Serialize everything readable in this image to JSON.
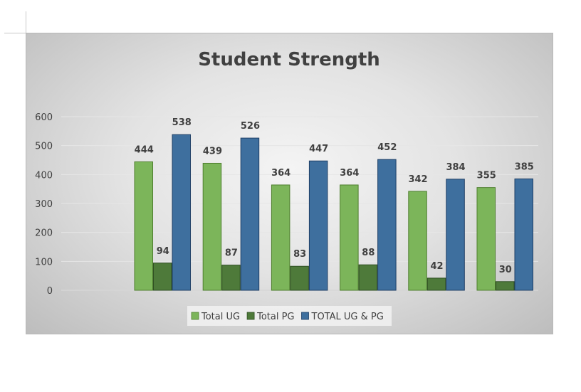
{
  "chart_data": {
    "type": "bar",
    "title": "Student Strength",
    "categories": [
      "",
      "",
      "",
      "",
      "",
      ""
    ],
    "series": [
      {
        "name": "Total UG",
        "values": [
          444,
          439,
          364,
          364,
          342,
          355
        ],
        "color": "#7cb55a",
        "stroke": "#4f7f2f"
      },
      {
        "name": "Total PG",
        "values": [
          94,
          87,
          83,
          88,
          42,
          30
        ],
        "color": "#4e7a3a",
        "stroke": "#2f4f22"
      },
      {
        "name": "TOTAL UG & PG",
        "values": [
          538,
          526,
          447,
          452,
          384,
          385
        ],
        "color": "#3e6f9e",
        "stroke": "#1f3f66"
      }
    ],
    "yticks": [
      0,
      100,
      200,
      300,
      400,
      500,
      600
    ],
    "ylim": [
      0,
      600
    ],
    "grid": true,
    "legend": "bottom",
    "xlabel": "",
    "ylabel": ""
  }
}
